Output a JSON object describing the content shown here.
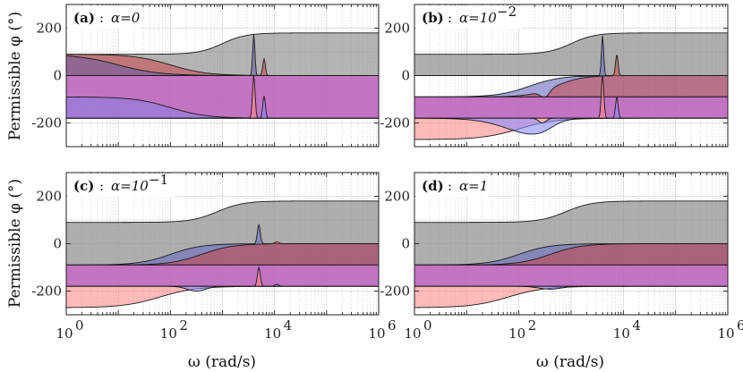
{
  "figure": {
    "ylabel": "Permissible φ (°)",
    "xlabel": "ω (rad/s)"
  },
  "chart_data": [
    {
      "type": "area",
      "id": "a",
      "tag": "(a)",
      "title": "α=0",
      "title_main": "α=0",
      "title_exp": "",
      "xscale": "log",
      "xlim": [
        1,
        1000000
      ],
      "ylim": [
        -300,
        300
      ],
      "xticks": [
        "10",
        "10",
        "10",
        "10"
      ],
      "xtick_exps": [
        "0",
        "2",
        "4",
        "6"
      ],
      "yticks": [
        "-200",
        "0",
        "200"
      ],
      "series": [
        {
          "name": "gray band",
          "upper_start": 90,
          "upper_end": 180,
          "lower": 0,
          "transition_log": 3.3
        },
        {
          "name": "red band",
          "upper": 90,
          "lower_start": -90,
          "lower_end": -180,
          "spike_at": 6300,
          "spike_value": 65
        },
        {
          "name": "blue band",
          "upper": 90,
          "lower_start": -90,
          "lower_end": -180,
          "spike_at": 4000,
          "spike_value": 175
        },
        {
          "name": "magenta band",
          "upper": 0,
          "lower": -180
        }
      ]
    },
    {
      "type": "area",
      "id": "b",
      "tag": "(b)",
      "title": "α=10^-2",
      "title_main": "α=10",
      "title_exp": "−2",
      "xscale": "log",
      "xlim": [
        1,
        1000000
      ],
      "ylim": [
        -300,
        300
      ],
      "xticks": [
        "10",
        "10",
        "10",
        "10"
      ],
      "xtick_exps": [
        "0",
        "2",
        "4",
        "6"
      ],
      "yticks": [
        "-200",
        "0",
        "200"
      ],
      "series": [
        {
          "name": "gray band",
          "upper_start": 90,
          "upper_end": 180,
          "lower": -90
        },
        {
          "name": "blue band",
          "upper": 0,
          "lower": -90,
          "spike_at": 4000,
          "spike_value": 175
        },
        {
          "name": "red band",
          "upper": 0,
          "lower": -90,
          "spike_at": 7500,
          "spike_value": 90
        },
        {
          "name": "magenta band",
          "upper": -90,
          "lower_start": -270,
          "lower_end": -180
        }
      ]
    },
    {
      "type": "area",
      "id": "c",
      "tag": "(c)",
      "title": "α=10^-1",
      "title_main": "α=10",
      "title_exp": "−1",
      "xscale": "log",
      "xlim": [
        1,
        1000000
      ],
      "ylim": [
        -300,
        300
      ],
      "xticks": [
        "10",
        "10",
        "10",
        "10"
      ],
      "xtick_exps": [
        "0",
        "2",
        "4",
        "6"
      ],
      "yticks": [
        "-200",
        "0",
        "200"
      ],
      "series": [
        {
          "name": "gray band",
          "upper_start": 90,
          "upper_end": 180,
          "lower": -90
        },
        {
          "name": "blue band",
          "upper": 0,
          "lower": -90,
          "spike_at": 5000,
          "spike_value": 85
        },
        {
          "name": "red band",
          "upper": 0,
          "lower": -90
        },
        {
          "name": "magenta band",
          "upper": -90,
          "lower_start": -270,
          "lower_end": -180,
          "spike_at": 5000,
          "spike_value": -100
        }
      ]
    },
    {
      "type": "area",
      "id": "d",
      "tag": "(d)",
      "title": "α=1",
      "title_main": "α=1",
      "title_exp": "",
      "xscale": "log",
      "xlim": [
        1,
        1000000
      ],
      "ylim": [
        -300,
        300
      ],
      "xticks": [
        "10",
        "10",
        "10",
        "10"
      ],
      "xtick_exps": [
        "0",
        "2",
        "4",
        "6"
      ],
      "yticks": [
        "-200",
        "0",
        "200"
      ],
      "series": [
        {
          "name": "gray band",
          "upper_start": 90,
          "upper_end": 180,
          "lower": -90
        },
        {
          "name": "blue band",
          "upper": 0,
          "lower": -90
        },
        {
          "name": "red band",
          "upper": 0,
          "lower": -90
        },
        {
          "name": "magenta band",
          "upper": -90,
          "lower_start": -270,
          "lower_end": -180
        }
      ]
    }
  ]
}
